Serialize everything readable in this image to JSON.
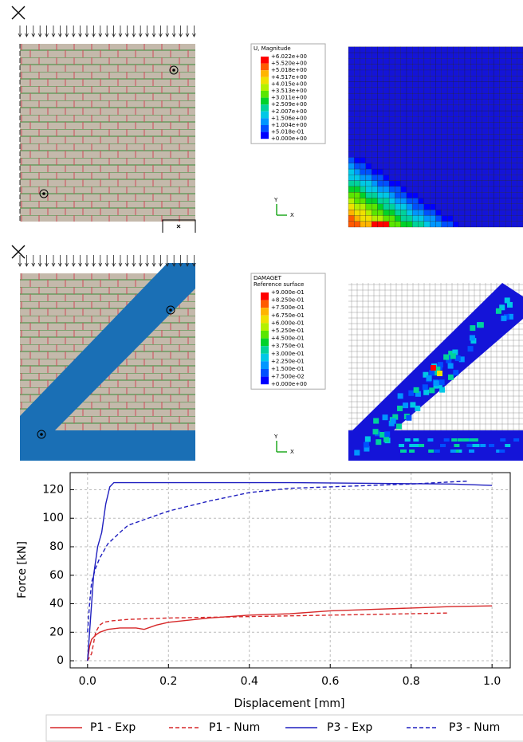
{
  "panels": [
    {
      "contour_legend": {
        "title": [
          "U, Magnitude"
        ],
        "labels": [
          "+6.022e+00",
          "+5.520e+00",
          "+5.018e+00",
          "+4.517e+00",
          "+4.015e+00",
          "+3.513e+00",
          "+3.011e+00",
          "+2.509e+00",
          "+2.007e+00",
          "+1.506e+00",
          "+1.004e+00",
          "+5.018e-01",
          "+0.000e+00"
        ]
      },
      "triad": {
        "y": "Y",
        "x": "X"
      }
    },
    {
      "contour_legend": {
        "title": [
          "DAMAGET",
          "Reference surface"
        ],
        "labels": [
          "+9.000e-01",
          "+8.250e-01",
          "+7.500e-01",
          "+6.750e-01",
          "+6.000e-01",
          "+5.250e-01",
          "+4.500e-01",
          "+3.750e-01",
          "+3.000e-01",
          "+2.250e-01",
          "+1.500e-01",
          "+7.500e-02",
          "+0.000e+00"
        ]
      },
      "triad": {
        "y": "Y",
        "x": "X"
      }
    }
  ],
  "chart_data": {
    "type": "line",
    "xlabel": "Displacement [mm]",
    "ylabel": "Force [kN]",
    "xlim": [
      -0.043,
      1.045
    ],
    "ylim": [
      -5,
      132
    ],
    "xticks": [
      {
        "value": 0,
        "label": "0.0"
      },
      0.2,
      0.4,
      0.6,
      0.8,
      {
        "value": 1,
        "label": "1.0"
      }
    ],
    "yticks": [
      0,
      20,
      40,
      60,
      80,
      100,
      120
    ],
    "grid": true,
    "series": [
      {
        "name": "P1 - Exp",
        "color": "#d62728",
        "dash": false,
        "x": [
          0,
          0.005,
          0.01,
          0.02,
          0.03,
          0.05,
          0.08,
          0.12,
          0.14,
          0.17,
          0.2,
          0.3,
          0.4,
          0.5,
          0.6,
          0.7,
          0.8,
          0.9,
          1.0
        ],
        "values": [
          0,
          10,
          15,
          18,
          20,
          22,
          23,
          23,
          22,
          25,
          27,
          30,
          32,
          33,
          35,
          36,
          37,
          38,
          38.5
        ]
      },
      {
        "name": "P1 - Num",
        "color": "#d62728",
        "dash": true,
        "x": [
          0,
          0.01,
          0.02,
          0.03,
          0.04,
          0.06,
          0.1,
          0.2,
          0.3,
          0.4,
          0.5,
          0.6,
          0.7,
          0.8,
          0.89
        ],
        "values": [
          0,
          5,
          20,
          25,
          27,
          28,
          29,
          30,
          30.5,
          31,
          31.5,
          32,
          32.5,
          33,
          33.5
        ]
      },
      {
        "name": "P3 - Exp",
        "color": "#1f1fbf",
        "dash": false,
        "x": [
          0,
          0.005,
          0.01,
          0.015,
          0.02,
          0.025,
          0.035,
          0.045,
          0.055,
          0.065,
          0.1,
          0.3,
          0.5,
          0.7,
          0.9,
          1.0
        ],
        "values": [
          0,
          20,
          40,
          60,
          70,
          80,
          90,
          110,
          122,
          125,
          125,
          125,
          125,
          124.5,
          124,
          123
        ]
      },
      {
        "name": "P3 - Num",
        "color": "#1f1fbf",
        "dash": true,
        "x": [
          0,
          0.005,
          0.01,
          0.02,
          0.03,
          0.05,
          0.08,
          0.1,
          0.15,
          0.2,
          0.3,
          0.4,
          0.5,
          0.6,
          0.7,
          0.8,
          0.9,
          0.94
        ],
        "values": [
          20,
          40,
          55,
          65,
          72,
          82,
          90,
          95,
          100,
          105,
          112,
          118,
          121,
          122,
          123,
          124,
          125.5,
          126
        ]
      }
    ]
  }
}
